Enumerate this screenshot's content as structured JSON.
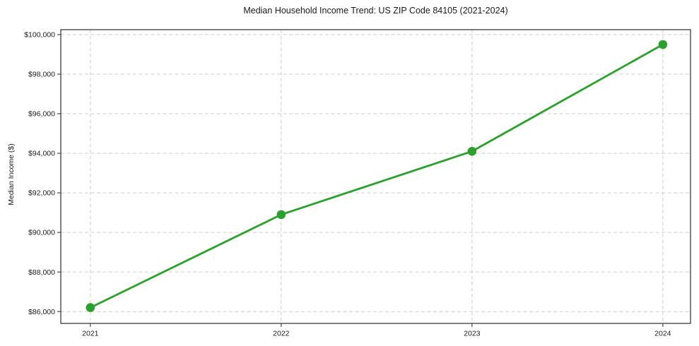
{
  "figure": {
    "background": "#ffffff"
  },
  "chart_data": {
    "type": "line",
    "title": "Median Household Income Trend: US ZIP Code 84105 (2021-2024)",
    "xlabel": "",
    "ylabel": "Median Income ($)",
    "x": [
      2021,
      2022,
      2023,
      2024
    ],
    "series": [
      {
        "name": "median-household-income",
        "values": [
          86200,
          90900,
          94100,
          99500
        ],
        "color": "#2ca02c",
        "marker": "circle",
        "marker_radius": 6.3,
        "line_width": 2.8
      }
    ],
    "xlim": [
      2020.845,
      2024.145
    ],
    "ylim": [
      85400,
      100250
    ],
    "xticks": [
      2021,
      2022,
      2023,
      2024
    ],
    "xticklabels": [
      "2021",
      "2022",
      "2023",
      "2024"
    ],
    "yticks": [
      86000,
      88000,
      90000,
      92000,
      94000,
      96000,
      98000,
      100000
    ],
    "yticklabels": [
      "$86,000",
      "$88,000",
      "$90,000",
      "$92,000",
      "$94,000",
      "$96,000",
      "$98,000",
      "$100,000"
    ],
    "grid": true,
    "grid_style": "dashed",
    "grid_color": "#cdcdcd",
    "spine_color": "#2b2b2b",
    "tick_color": "#2b2b2b",
    "text_color": "#1a1a1a",
    "legend": "none"
  }
}
